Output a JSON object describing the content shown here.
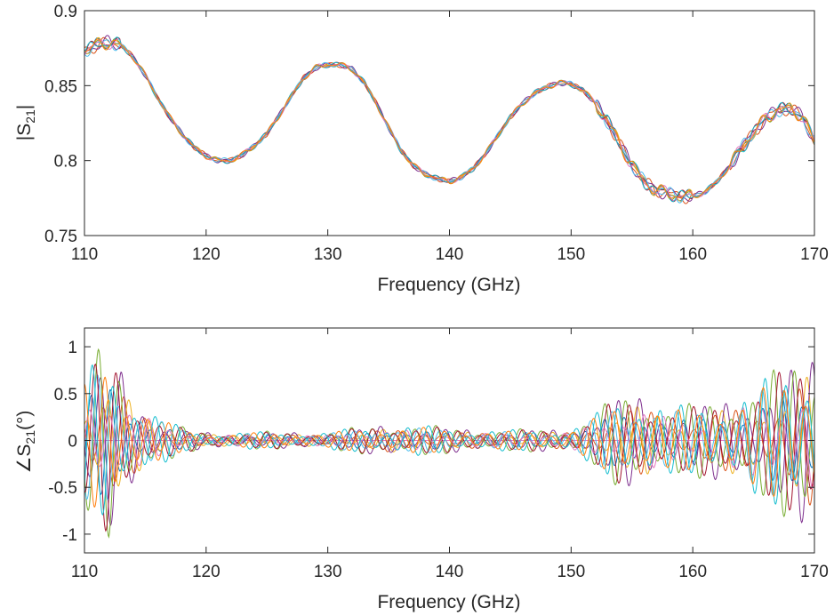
{
  "chart_data": [
    {
      "type": "line",
      "ylabel": "|S21|",
      "ylabel_main": "|S",
      "ylabel_sub": "21",
      "ylabel_end": "|",
      "xlabel": "Frequency (GHz)",
      "xlim": [
        110,
        170
      ],
      "ylim": [
        0.75,
        0.9
      ],
      "xticks": [
        "110",
        "120",
        "130",
        "140",
        "150",
        "160",
        "170"
      ],
      "yticks": [
        "0.75",
        "0.8",
        "0.85",
        "0.9"
      ],
      "grid": false,
      "note": "ensemble of ~10 overlapping traces; mean curve values below",
      "x": [
        110,
        111,
        112,
        113,
        114,
        115,
        116,
        117,
        118,
        119,
        120,
        121,
        122,
        123,
        124,
        125,
        126,
        127,
        128,
        129,
        130,
        131,
        132,
        133,
        134,
        135,
        136,
        137,
        138,
        139,
        140,
        141,
        142,
        143,
        144,
        145,
        146,
        147,
        148,
        149,
        150,
        151,
        152,
        153,
        154,
        155,
        156,
        157,
        158,
        159,
        160,
        161,
        162,
        163,
        164,
        165,
        166,
        167,
        168,
        169,
        170
      ],
      "series": [
        {
          "values": [
            0.873,
            0.877,
            0.879,
            0.877,
            0.869,
            0.857,
            0.842,
            0.829,
            0.818,
            0.809,
            0.803,
            0.8,
            0.8,
            0.804,
            0.81,
            0.818,
            0.83,
            0.843,
            0.855,
            0.862,
            0.864,
            0.864,
            0.861,
            0.852,
            0.838,
            0.822,
            0.807,
            0.797,
            0.791,
            0.788,
            0.786,
            0.789,
            0.795,
            0.805,
            0.817,
            0.829,
            0.838,
            0.845,
            0.849,
            0.852,
            0.851,
            0.847,
            0.838,
            0.826,
            0.811,
            0.797,
            0.786,
            0.78,
            0.778,
            0.776,
            0.776,
            0.779,
            0.786,
            0.796,
            0.808,
            0.819,
            0.828,
            0.834,
            0.834,
            0.83,
            0.812
          ]
        }
      ]
    },
    {
      "type": "line",
      "ylabel": "∠S21(°)",
      "ylabel_main": "∠S",
      "ylabel_sub": "21",
      "ylabel_end": "(°)",
      "xlabel": "Frequency (GHz)",
      "xlim": [
        110,
        170
      ],
      "ylim": [
        -1.2,
        1.2
      ],
      "xticks": [
        "110",
        "120",
        "130",
        "140",
        "150",
        "160",
        "170"
      ],
      "yticks": [
        "-1",
        "-0.5",
        "0",
        "0.5",
        "1"
      ],
      "grid": false,
      "note": "ensemble of ~10 oscillating traces around 0; envelope amplitude shown",
      "x": [
        110,
        112,
        114,
        116,
        118,
        120,
        125,
        130,
        135,
        140,
        145,
        150,
        152,
        154,
        156,
        158,
        160,
        162,
        164,
        166,
        168,
        170
      ],
      "envelope": [
        0.75,
        1.15,
        0.6,
        0.3,
        0.15,
        0.1,
        0.1,
        0.1,
        0.2,
        0.15,
        0.12,
        0.15,
        0.3,
        0.55,
        0.6,
        0.4,
        0.4,
        0.5,
        0.6,
        0.7,
        0.9,
        1.2
      ],
      "series": [
        {
          "values": [
            0.0,
            1.15,
            -0.6,
            0.3,
            -0.15,
            0.05,
            0.05,
            -0.05,
            0.1,
            0.05,
            0.05,
            -0.1,
            0.3,
            -0.55,
            0.6,
            -0.4,
            0.3,
            -0.5,
            0.6,
            -0.7,
            0.9,
            -1.2
          ]
        }
      ]
    }
  ],
  "colors": [
    "#0072bd",
    "#d95319",
    "#edb120",
    "#7e2f8e",
    "#77ac30",
    "#4dbeee",
    "#a2142f",
    "#e377c2",
    "#17becf",
    "#ff7f0e"
  ]
}
